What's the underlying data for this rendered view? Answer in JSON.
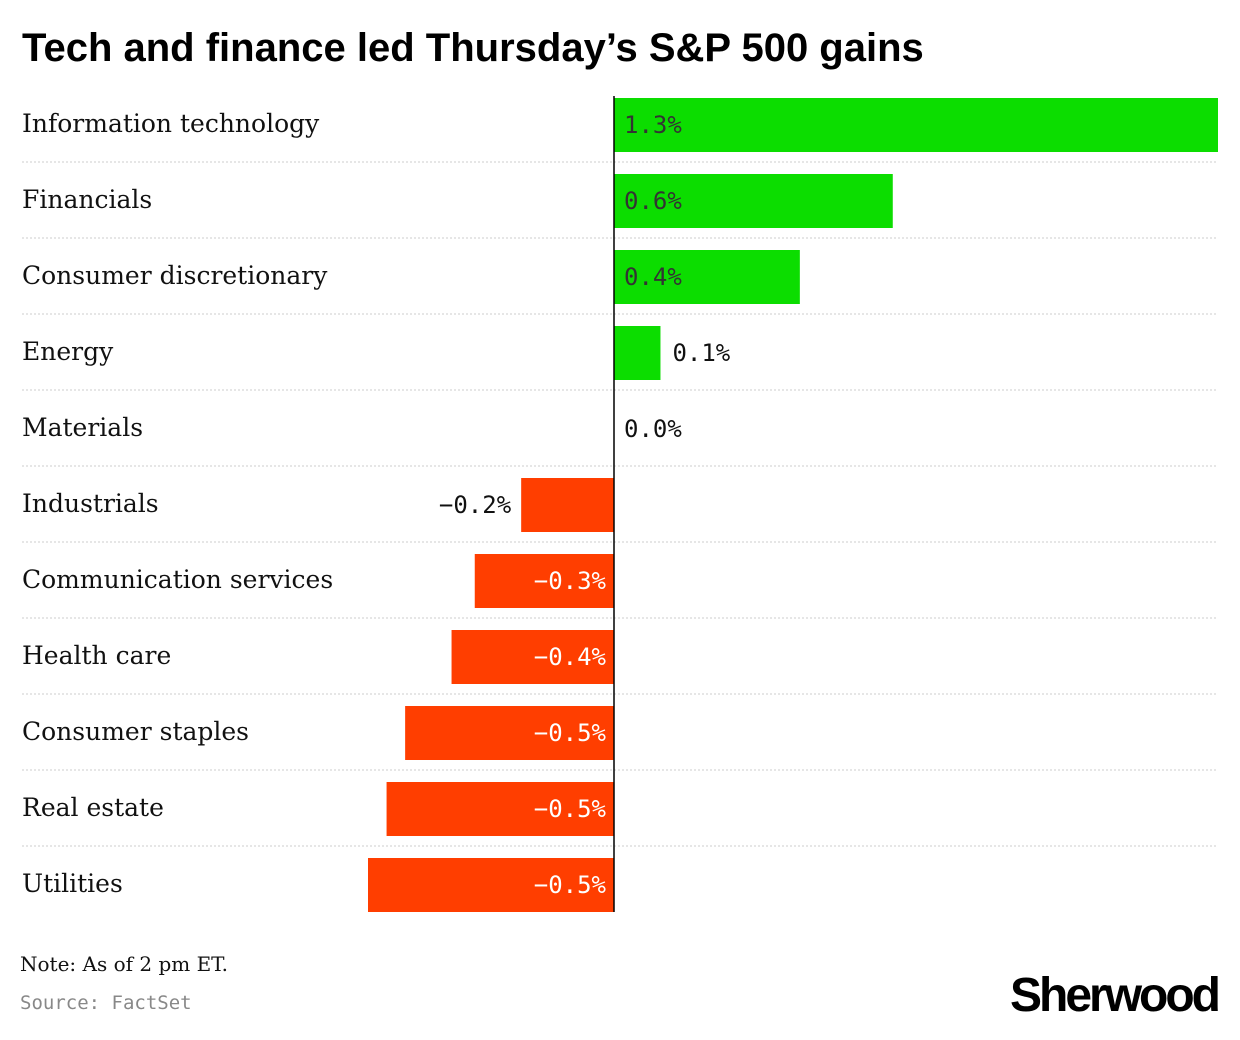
{
  "chart_data": {
    "type": "bar",
    "orientation": "horizontal",
    "title": "Tech and finance led Thursday’s S&P 500 gains",
    "categories": [
      "Information technology",
      "Financials",
      "Consumer discretionary",
      "Energy",
      "Materials",
      "Industrials",
      "Communication services",
      "Health care",
      "Consumer staples",
      "Real estate",
      "Utilities"
    ],
    "values": [
      1.3,
      0.6,
      0.4,
      0.1,
      0.0,
      -0.2,
      -0.3,
      -0.35,
      -0.45,
      -0.49,
      -0.53
    ],
    "value_labels": [
      "1.3%",
      "0.6%",
      "0.4%",
      "0.1%",
      "0.0%",
      "−0.2%",
      "−0.3%",
      "−0.4%",
      "−0.5%",
      "−0.5%",
      "−0.5%"
    ],
    "unit": "%",
    "xlim": [
      -0.53,
      1.3
    ],
    "grid": false,
    "colors": {
      "positive": "#0cdd00",
      "negative": "#ff3e00",
      "baseline": "#000000",
      "separator": "#cccccc"
    }
  },
  "note": "Note: As of 2 pm ET.",
  "source": "Source: FactSet",
  "brand": "Sherwood"
}
